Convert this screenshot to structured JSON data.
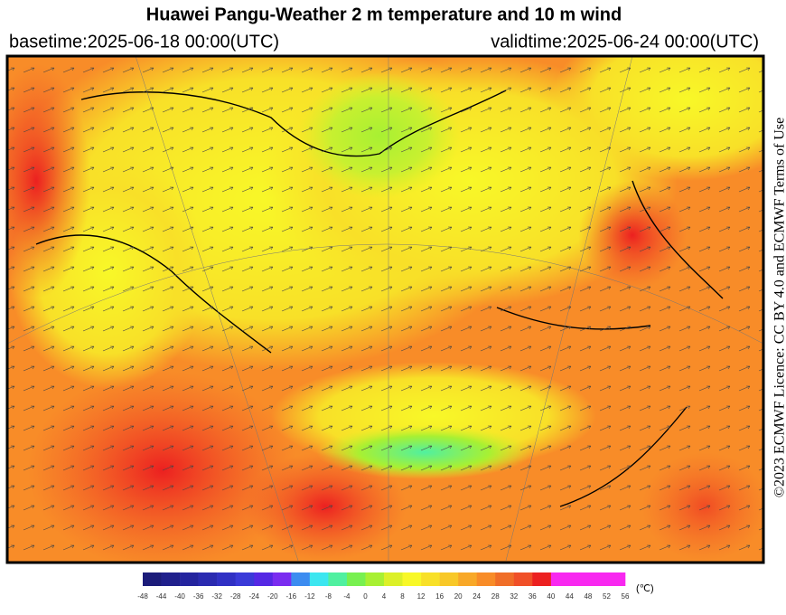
{
  "header": {
    "title": "Huawei Pangu-Weather  2 m temperature and 10 m wind",
    "basetime": "basetime:2025-06-18 00:00(UTC)",
    "validtime": "validtime:2025-06-24 00:00(UTC)"
  },
  "licence": "©2023 ECMWF Licence: CC BY 4.0 and ECMWF Terms of Use",
  "colorbar": {
    "labels": [
      -48,
      -44,
      -40,
      -36,
      -32,
      -28,
      -24,
      -20,
      -16,
      -12,
      -8,
      -4,
      0,
      4,
      8,
      12,
      16,
      20,
      24,
      28,
      32,
      36,
      40,
      44,
      48,
      52,
      56
    ],
    "colors": [
      "#1c1c7a",
      "#20208c",
      "#24249e",
      "#2a2ab0",
      "#3030c4",
      "#3a3ad8",
      "#5528e4",
      "#7a2cf0",
      "#3c8cf0",
      "#3ce6f0",
      "#50f0a0",
      "#78f050",
      "#a8f032",
      "#dcf028",
      "#f8f828",
      "#f8e028",
      "#f8c828",
      "#f8a828",
      "#f88c28",
      "#f06e28",
      "#f05028",
      "#ec2020",
      "#f828f0",
      "#f828f0",
      "#f828f0",
      "#f828f0"
    ],
    "unit": "(℃)"
  }
}
